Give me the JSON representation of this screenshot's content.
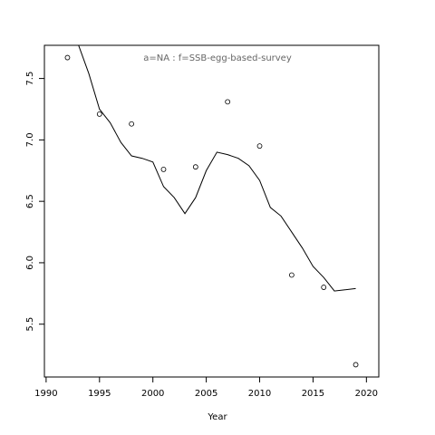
{
  "chart_data": {
    "type": "line",
    "title": "a=NA  :  f=SSB-egg-based-survey",
    "xlabel": "Year",
    "points": {
      "x": [
        1992,
        1995,
        1998,
        2001,
        2004,
        2007,
        2010,
        2013,
        2016,
        2019
      ],
      "values": [
        7.67,
        7.21,
        7.13,
        6.76,
        6.78,
        7.31,
        6.95,
        5.9,
        5.8,
        5.17
      ],
      "color": "#000000"
    },
    "line": {
      "x": [
        1993,
        1994,
        1995,
        1996,
        1997,
        1998,
        1999,
        2000,
        2001,
        2002,
        2003,
        2004,
        2005,
        2006,
        2007,
        2008,
        2009,
        2010,
        2011,
        2012,
        2013,
        2014,
        2015,
        2016,
        2017,
        2018,
        2019
      ],
      "values": [
        7.78,
        7.54,
        7.25,
        7.14,
        6.98,
        6.87,
        6.85,
        6.82,
        6.62,
        6.53,
        6.4,
        6.53,
        6.75,
        6.9,
        6.88,
        6.85,
        6.79,
        6.67,
        6.45,
        6.38,
        6.25,
        6.12,
        5.97,
        5.88,
        5.77,
        5.78,
        5.79
      ],
      "color": "#000000"
    },
    "xlim": [
      1989.84,
      2021.16
    ],
    "ylim": [
      5.07,
      7.77
    ],
    "xticks": [
      1990,
      1995,
      2000,
      2005,
      2010,
      2015,
      2020
    ],
    "yticks": [
      5.5,
      {
        "value": 6,
        "label": "6.0"
      },
      6.5,
      {
        "value": 7,
        "label": "7.0"
      },
      7.5
    ]
  }
}
